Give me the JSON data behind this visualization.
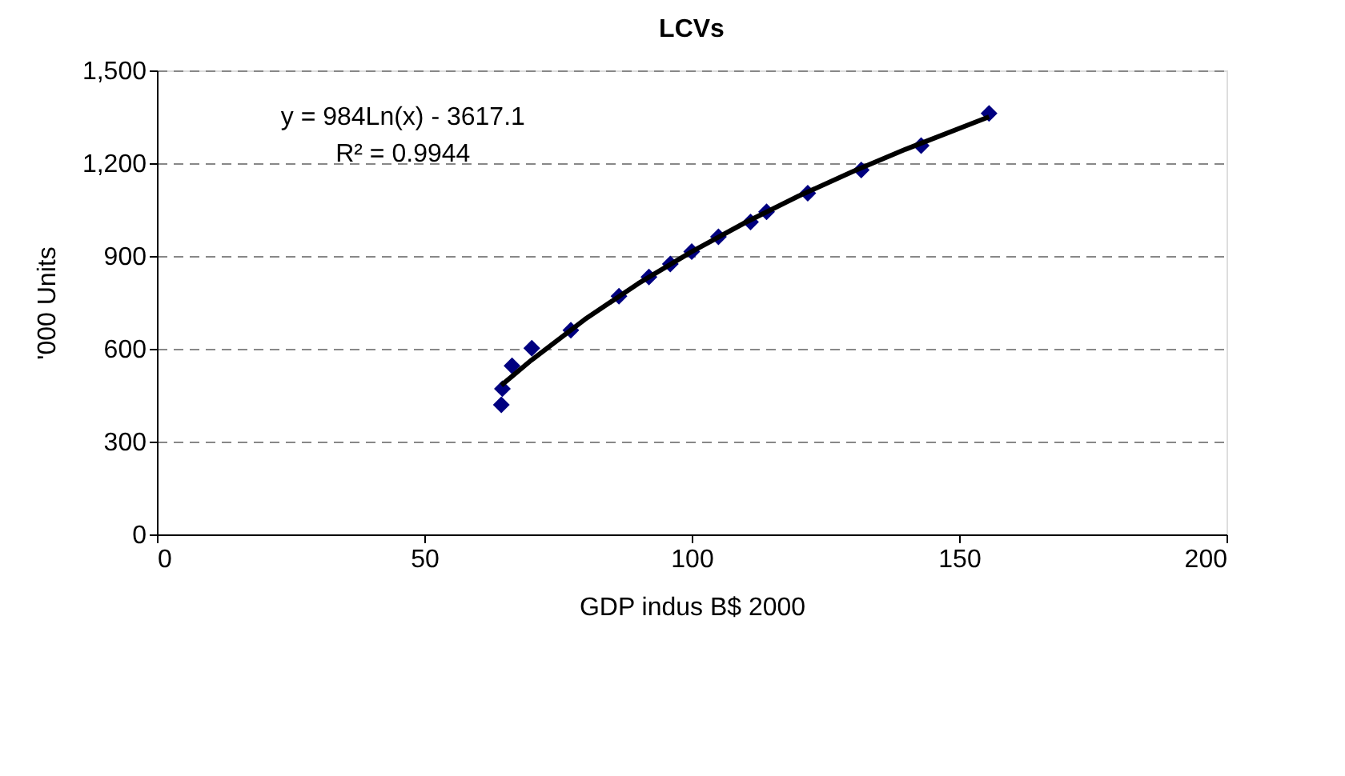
{
  "chart_data": {
    "type": "scatter",
    "title": "LCVs",
    "xlabel": "GDP indus B$ 2000",
    "ylabel": "'000 Units",
    "annotations": [
      "y = 984Ln(x) - 3617.1",
      "R² = 0.9944"
    ],
    "xlim": [
      0,
      200
    ],
    "xticks": [
      0,
      50,
      100,
      150,
      200
    ],
    "ylim": [
      0,
      1500
    ],
    "yticks": [
      {
        "value": 0,
        "label": "0"
      },
      {
        "value": 300,
        "label": "300"
      },
      {
        "value": 600,
        "label": "600"
      },
      {
        "value": 900,
        "label": "900"
      },
      {
        "value": 1200,
        "label": "1,200"
      },
      {
        "value": 1500,
        "label": "1,500"
      }
    ],
    "grid": "y",
    "marker": "diamond",
    "series": [
      {
        "color": "#000080",
        "x": [
          64.4,
          64.6,
          66.4,
          70.1,
          77.4,
          86.4,
          92,
          96,
          100,
          105,
          111,
          114,
          121.7,
          131.7,
          142.9,
          155.6
        ],
        "values": [
          419,
          471,
          545,
          602,
          660,
          770,
          832,
          874,
          914,
          962,
          1010,
          1043,
          1103,
          1178,
          1257,
          1361
        ]
      },
      {
        "type": "line",
        "color": "#000000",
        "marker": "none",
        "x": [
          64.4,
          70,
          80,
          90,
          100,
          110,
          120,
          130,
          140,
          155.6
        ],
        "values": [
          482,
          563,
          695,
          811,
          914,
          1008,
          1094,
          1172,
          1245,
          1350
        ]
      }
    ]
  }
}
